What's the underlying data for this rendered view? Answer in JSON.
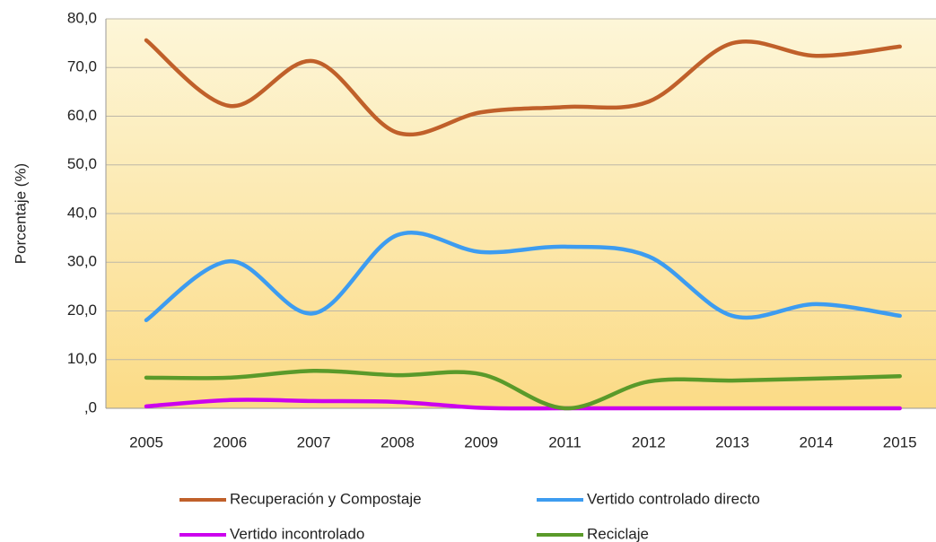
{
  "chart_data": {
    "type": "line",
    "y_label": "Porcentaje (%)",
    "categories": [
      "2005",
      "2006",
      "2007",
      "2008",
      "2009",
      "2011",
      "2012",
      "2013",
      "2014",
      "2015"
    ],
    "series": [
      {
        "name": "Recuperación y Compostaje",
        "color": "#c0602a",
        "values": [
          75.6,
          62.1,
          71.3,
          56.6,
          60.8,
          61.9,
          63.0,
          75.0,
          72.4,
          74.3
        ]
      },
      {
        "name": "Vertido controlado directo",
        "color": "#3d9cf0",
        "values": [
          18.1,
          30.2,
          19.5,
          35.6,
          32.1,
          33.2,
          31.2,
          19.0,
          21.4,
          19.0
        ]
      },
      {
        "name": "Vertido incontrolado",
        "color": "#cc00ee",
        "values": [
          0.4,
          1.7,
          1.5,
          1.3,
          0.1,
          0,
          0,
          0,
          0,
          0
        ]
      },
      {
        "name": "Reciclaje",
        "color": "#5a9a2a",
        "values": [
          6.3,
          6.3,
          7.7,
          6.8,
          7.0,
          0,
          5.5,
          5.7,
          6.1,
          6.6
        ]
      }
    ],
    "ylim": [
      0,
      80
    ],
    "yticks": [
      {
        "value": 0,
        "label": ",0"
      },
      {
        "value": 10,
        "label": "10,0"
      },
      {
        "value": 20,
        "label": "20,0"
      },
      {
        "value": 30,
        "label": "30,0"
      },
      {
        "value": 40,
        "label": "40,0"
      },
      {
        "value": 50,
        "label": "50,0"
      },
      {
        "value": 60,
        "label": "60,0"
      },
      {
        "value": 70,
        "label": "70,0"
      },
      {
        "value": 80,
        "label": "80,0"
      }
    ],
    "grid": true,
    "legend": "bottom",
    "smooth": true
  }
}
